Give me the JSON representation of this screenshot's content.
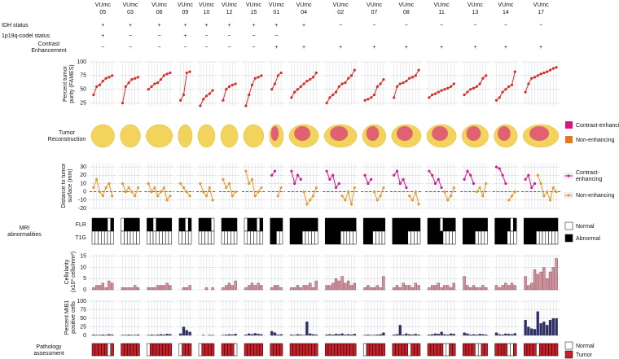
{
  "chart_data": {
    "type": "multipanel",
    "prefix": "VUmc",
    "status_labels": {
      "idh": "IDH status",
      "codel": "1p19q-codel status",
      "ce": [
        "Contrast",
        "Enhancement"
      ]
    },
    "patients": [
      {
        "id": "05",
        "idh": "+",
        "codel": "+",
        "ce": "−",
        "purity": [
          40,
          55,
          58,
          65,
          70,
          72,
          75
        ],
        "dist_ne": [
          5,
          15,
          0,
          -5,
          5,
          10,
          -5
        ],
        "flr": [
          1,
          1,
          1,
          1,
          1,
          0,
          1
        ],
        "t1g": [
          0,
          0,
          0,
          0,
          0,
          0,
          0
        ],
        "cell": [
          1,
          2,
          2,
          3,
          1,
          4,
          3
        ],
        "mib": [
          2,
          1,
          1,
          2,
          1,
          3,
          2
        ],
        "path": [
          1,
          1,
          1,
          1,
          1,
          0,
          1
        ]
      },
      {
        "id": "03",
        "idh": "+",
        "codel": "−",
        "ce": "−",
        "purity": [
          25,
          55,
          62,
          68,
          70,
          72
        ],
        "dist_ne": [
          10,
          0,
          5,
          0,
          -5,
          5
        ],
        "flr": [
          0,
          1,
          1,
          1,
          1,
          1
        ],
        "t1g": [
          0,
          0,
          0,
          0,
          0,
          0
        ],
        "cell": [
          1,
          1,
          1,
          1,
          2,
          1
        ],
        "mib": [
          1,
          1,
          2,
          1,
          1,
          2
        ],
        "path": [
          1,
          1,
          1,
          1,
          1,
          1
        ]
      },
      {
        "id": "06",
        "idh": "+",
        "codel": "−",
        "ce": "−",
        "purity": [
          50,
          55,
          60,
          62,
          68,
          75,
          78,
          80
        ],
        "dist_ne": [
          10,
          0,
          5,
          -5,
          0,
          5,
          -10,
          -5
        ],
        "flr": [
          1,
          1,
          0,
          1,
          1,
          1,
          1,
          1
        ],
        "t1g": [
          0,
          0,
          0,
          0,
          0,
          0,
          0,
          0
        ],
        "cell": [
          1,
          1,
          1,
          2,
          2,
          2,
          3,
          2
        ],
        "mib": [
          1,
          2,
          1,
          2,
          3,
          2,
          4,
          3
        ],
        "path": [
          0,
          1,
          1,
          1,
          1,
          1,
          1,
          1
        ]
      },
      {
        "id": "09",
        "idh": "+",
        "codel": "+",
        "ce": "−",
        "purity": [
          30,
          40,
          80,
          82
        ],
        "dist_ne": [
          10,
          5,
          0,
          -5
        ],
        "flr": [
          1,
          1,
          0,
          1
        ],
        "t1g": [
          0,
          0,
          0,
          0
        ],
        "cell": [
          0,
          1,
          1,
          2
        ],
        "mib": [
          5,
          25,
          15,
          10
        ],
        "path": [
          0,
          1,
          1,
          1
        ]
      },
      {
        "id": "10",
        "idh": "+",
        "codel": "−",
        "ce": "−",
        "purity": [
          20,
          32,
          38,
          42,
          48
        ],
        "dist_ne": [
          10,
          0,
          -5,
          5,
          -10
        ],
        "flr": [
          1,
          1,
          1,
          1,
          0
        ],
        "t1g": [
          0,
          0,
          0,
          0,
          0
        ],
        "cell": [
          0,
          0,
          1,
          0,
          1
        ],
        "mib": [
          0,
          1,
          0,
          1,
          1
        ],
        "path": [
          0,
          1,
          1,
          1,
          1
        ]
      },
      {
        "id": "12",
        "idh": "+",
        "codel": "−",
        "ce": "−",
        "purity": [
          30,
          50,
          55,
          58,
          60
        ],
        "dist_ne": [
          15,
          5,
          10,
          -5,
          0
        ],
        "flr": [
          1,
          1,
          1,
          1,
          1
        ],
        "t1g": [
          0,
          0,
          0,
          0,
          0
        ],
        "cell": [
          1,
          2,
          3,
          2,
          4
        ],
        "mib": [
          1,
          2,
          3,
          2,
          4
        ],
        "path": [
          1,
          1,
          1,
          1,
          0
        ]
      },
      {
        "id": "15",
        "idh": "+",
        "codel": "−",
        "ce": "−",
        "purity": [
          20,
          40,
          58,
          70,
          72,
          75
        ],
        "dist_ne": [
          25,
          10,
          15,
          -5,
          0,
          5
        ],
        "flr": [
          0,
          1,
          1,
          1,
          0,
          1
        ],
        "t1g": [
          0,
          0,
          0,
          0,
          0,
          0
        ],
        "cell": [
          1,
          2,
          3,
          2,
          3,
          2
        ],
        "mib": [
          2,
          5,
          3,
          6,
          4,
          3
        ],
        "path": [
          1,
          1,
          1,
          1,
          1,
          1
        ]
      },
      {
        "id": "01",
        "idh": "+",
        "codel": "−",
        "ce": "+",
        "purity": [
          50,
          60,
          75,
          80
        ],
        "dist_ce": [
          20,
          25,
          null,
          null
        ],
        "dist_ne": [
          null,
          null,
          -5,
          5
        ],
        "flr": [
          1,
          1,
          1,
          1
        ],
        "t1g": [
          1,
          1,
          0,
          0
        ],
        "cell": [
          1,
          2,
          2,
          1
        ],
        "mib": [
          12,
          8,
          2,
          3
        ],
        "path": [
          1,
          1,
          1,
          1
        ]
      },
      {
        "id": "04",
        "idh": "+",
        "ce": "+",
        "purity": [
          35,
          45,
          50,
          55,
          60,
          65,
          68,
          72,
          80
        ],
        "dist_ce": [
          25,
          10,
          20,
          15,
          null,
          null,
          null,
          null,
          null
        ],
        "dist_ne": [
          null,
          null,
          null,
          null,
          0,
          -15,
          -10,
          -5,
          5
        ],
        "flr": [
          1,
          1,
          1,
          1,
          1,
          1,
          1,
          1,
          1
        ],
        "t1g": [
          1,
          1,
          1,
          1,
          0,
          0,
          0,
          0,
          0
        ],
        "cell": [
          1,
          1,
          2,
          1,
          2,
          2,
          3,
          1,
          4
        ],
        "mib": [
          2,
          1,
          3,
          2,
          1,
          40,
          5,
          3,
          2
        ],
        "path": [
          1,
          1,
          1,
          1,
          1,
          1,
          1,
          1,
          1
        ]
      },
      {
        "id": "02",
        "idh": "−",
        "ce": "+",
        "purity": [
          25,
          35,
          40,
          45,
          55,
          60,
          62,
          70,
          75,
          85
        ],
        "dist_ce": [
          25,
          15,
          20,
          5,
          10,
          null,
          null,
          null,
          null,
          null
        ],
        "dist_ne": [
          null,
          null,
          null,
          null,
          null,
          -5,
          -10,
          0,
          -15,
          5
        ],
        "flr": [
          1,
          1,
          1,
          1,
          1,
          1,
          1,
          1,
          1,
          1
        ],
        "t1g": [
          1,
          1,
          1,
          1,
          1,
          0,
          0,
          0,
          0,
          0
        ],
        "cell": [
          2,
          2,
          3,
          5,
          4,
          6,
          3,
          4,
          2,
          3
        ],
        "mib": [
          2,
          3,
          2,
          4,
          3,
          5,
          2,
          3,
          2,
          4
        ],
        "path": [
          1,
          1,
          1,
          1,
          1,
          1,
          1,
          1,
          1,
          1
        ]
      },
      {
        "id": "07",
        "idh": "−",
        "ce": "+",
        "purity": [
          30,
          32,
          35,
          40,
          55,
          60,
          68
        ],
        "dist_ce": [
          20,
          10,
          15,
          null,
          null,
          null,
          null
        ],
        "dist_ne": [
          null,
          null,
          null,
          0,
          -10,
          -5,
          5
        ],
        "flr": [
          1,
          1,
          1,
          1,
          1,
          1,
          1
        ],
        "t1g": [
          1,
          1,
          1,
          0,
          0,
          0,
          0
        ],
        "cell": [
          1,
          2,
          1,
          1,
          2,
          1,
          6
        ],
        "mib": [
          1,
          2,
          1,
          1,
          2,
          3,
          8
        ],
        "path": [
          0,
          1,
          1,
          1,
          1,
          1,
          1
        ]
      },
      {
        "id": "08",
        "idh": "−",
        "ce": "+",
        "purity": [
          35,
          55,
          60,
          62,
          65,
          70,
          72,
          75,
          85
        ],
        "dist_ce": [
          20,
          25,
          10,
          15,
          5,
          null,
          null,
          null,
          null
        ],
        "dist_ne": [
          null,
          null,
          null,
          null,
          null,
          -5,
          -10,
          0,
          -15
        ],
        "flr": [
          1,
          1,
          1,
          1,
          1,
          1,
          1,
          1,
          1
        ],
        "t1g": [
          1,
          1,
          1,
          1,
          1,
          0,
          0,
          0,
          0
        ],
        "cell": [
          1,
          2,
          1,
          3,
          2,
          2,
          1,
          3,
          2
        ],
        "mib": [
          2,
          3,
          30,
          2,
          5,
          3,
          2,
          4,
          2
        ],
        "path": [
          1,
          1,
          1,
          1,
          1,
          0,
          1,
          1,
          1
        ]
      },
      {
        "id": "11",
        "idh": "−",
        "ce": "+",
        "purity": [
          35,
          40,
          42,
          45,
          48,
          50,
          52,
          55,
          60
        ],
        "dist_ce": [
          25,
          20,
          10,
          15,
          5,
          null,
          null,
          null,
          null
        ],
        "dist_ne": [
          null,
          null,
          null,
          null,
          null,
          0,
          -10,
          -5,
          5
        ],
        "flr": [
          1,
          1,
          1,
          1,
          0,
          1,
          1,
          1,
          1
        ],
        "t1g": [
          1,
          1,
          1,
          1,
          1,
          0,
          0,
          0,
          0
        ],
        "cell": [
          1,
          2,
          2,
          3,
          1,
          2,
          2,
          1,
          3
        ],
        "mib": [
          2,
          3,
          5,
          4,
          10,
          3,
          2,
          5,
          4
        ],
        "path": [
          1,
          1,
          1,
          1,
          1,
          0,
          0,
          1,
          1
        ]
      },
      {
        "id": "13",
        "idh": "−",
        "ce": "+",
        "purity": [
          40,
          45,
          50,
          52,
          55,
          60,
          70,
          75
        ],
        "dist_ce": [
          15,
          25,
          20,
          10,
          null,
          null,
          null,
          null
        ],
        "dist_ne": [
          null,
          null,
          null,
          null,
          0,
          5,
          -5,
          10
        ],
        "flr": [
          1,
          1,
          1,
          1,
          1,
          1,
          1,
          1
        ],
        "t1g": [
          1,
          1,
          1,
          1,
          0,
          0,
          0,
          0
        ],
        "cell": [
          6,
          2,
          1,
          2,
          1,
          1,
          2,
          1
        ],
        "mib": [
          8,
          5,
          2,
          3,
          2,
          4,
          3,
          2
        ],
        "path": [
          1,
          1,
          1,
          1,
          0,
          0,
          1,
          1
        ]
      },
      {
        "id": "14",
        "idh": "−",
        "ce": "+",
        "purity": [
          30,
          35,
          45,
          50,
          55,
          58,
          82
        ],
        "dist_ce": [
          30,
          28,
          20,
          10,
          null,
          null,
          null
        ],
        "dist_ne": [
          null,
          null,
          null,
          null,
          -10,
          -5,
          0
        ],
        "flr": [
          1,
          1,
          1,
          1,
          1,
          0,
          1
        ],
        "t1g": [
          1,
          1,
          1,
          1,
          0,
          0,
          0
        ],
        "cell": [
          2,
          1,
          2,
          3,
          2,
          3,
          2
        ],
        "mib": [
          8,
          3,
          2,
          5,
          4,
          3,
          6
        ],
        "path": [
          1,
          1,
          1,
          1,
          0,
          0,
          1
        ]
      },
      {
        "id": "17",
        "idh": "−",
        "ce": "+",
        "purity": [
          45,
          60,
          70,
          72,
          75,
          78,
          80,
          82,
          85,
          88,
          90
        ],
        "dist_ce": [
          15,
          20,
          5,
          10,
          null,
          null,
          null,
          null,
          null,
          null,
          null
        ],
        "dist_ne": [
          null,
          null,
          null,
          null,
          20,
          10,
          -5,
          0,
          -10,
          5,
          0
        ],
        "flr": [
          1,
          1,
          1,
          1,
          1,
          1,
          1,
          1,
          1,
          1,
          1
        ],
        "t1g": [
          1,
          1,
          1,
          1,
          0,
          0,
          0,
          0,
          0,
          0,
          0
        ],
        "cell": [
          6,
          2,
          3,
          9,
          7,
          8,
          10,
          5,
          8,
          10,
          14
        ],
        "mib": [
          45,
          25,
          20,
          18,
          70,
          35,
          40,
          30,
          45,
          50,
          50
        ],
        "path": [
          1,
          1,
          1,
          1,
          0,
          1,
          1,
          1,
          1,
          1,
          1
        ]
      }
    ],
    "purity": {
      "label": [
        "Percent tumor",
        "purity (FAMES)"
      ],
      "color": "#d62f2a",
      "ylim": [
        20,
        100
      ],
      "yticks": [
        25,
        50,
        75,
        100
      ]
    },
    "reconstruction": {
      "label": [
        "Tumor",
        "Reconstruction"
      ],
      "legend": [
        {
          "name": "Contrast-enhancing",
          "color": "#d4187f"
        },
        {
          "name": "Non-enhancing",
          "color": "#e07a22"
        }
      ]
    },
    "distance": {
      "label": [
        "Distance to tumor",
        "surface (mm)"
      ],
      "ylim": [
        -20,
        35
      ],
      "yticks": [
        -20,
        -10,
        0,
        10,
        20,
        30
      ],
      "series": [
        {
          "name": [
            "Contrast-",
            "enhancing"
          ],
          "color": "#cc1f8c"
        },
        {
          "name": [
            "Non-enhancing"
          ],
          "color": "#e39a2c"
        }
      ]
    },
    "mri": {
      "label": [
        "MRI",
        "abnormalities"
      ],
      "rows": [
        "FLR",
        "T1G"
      ],
      "legend": [
        {
          "name": "Normal",
          "color": "#ffffff"
        },
        {
          "name": "Abnormal",
          "color": "#000000"
        }
      ]
    },
    "cellularity": {
      "label": [
        "Cellularity",
        "(x10³ cells/mm²)"
      ],
      "color": "#d98a96",
      "ylim": [
        0,
        16
      ],
      "yticks": [
        0,
        5,
        10,
        15
      ]
    },
    "mib1": {
      "label": [
        "Percent MIB1",
        "positive cells"
      ],
      "color": "#2e2f6e",
      "ylim": [
        0,
        105
      ],
      "yticks": [
        0,
        25,
        50,
        75,
        100
      ]
    },
    "pathology": {
      "label": [
        "Pathology",
        "assessment"
      ],
      "legend": [
        {
          "name": "Normal",
          "color": "#ffffff"
        },
        {
          "name": "Tumor",
          "color": "#c8202a"
        }
      ]
    }
  }
}
